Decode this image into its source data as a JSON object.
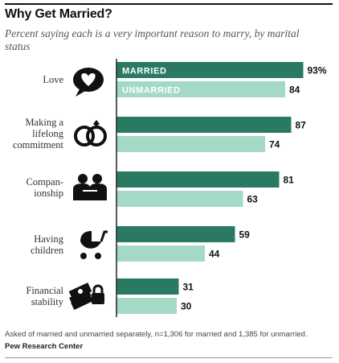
{
  "title": "Why Get Married?",
  "subtitle": "Percent saying each is a very important reason to marry, by marital status",
  "note": "Asked of married and unmarried separately, n=1,306 for married and 1,385 for unmarried.",
  "source": "Pew Research Center",
  "colors": {
    "married": "#2a7a63",
    "unmarried": "#a4d9c6",
    "axis": "#222222",
    "icon": "#111111"
  },
  "chart_data": {
    "type": "bar",
    "orientation": "horizontal",
    "categories": [
      {
        "lines": [
          "Love"
        ],
        "icon": "heart-speech-bubble-icon"
      },
      {
        "lines": [
          "Making a",
          "lifelong",
          "commitment"
        ],
        "icon": "wedding-rings-icon"
      },
      {
        "lines": [
          "Compan-",
          "ionship"
        ],
        "icon": "two-people-icon"
      },
      {
        "lines": [
          "Having",
          "children"
        ],
        "icon": "baby-stroller-icon"
      },
      {
        "lines": [
          "Financial",
          "stability"
        ],
        "icon": "money-lock-icon"
      }
    ],
    "series": [
      {
        "name": "MARRIED",
        "values": [
          93,
          87,
          81,
          59,
          31
        ],
        "labels": [
          "93%",
          "87",
          "81",
          "59",
          "31"
        ]
      },
      {
        "name": "UNMARRIED",
        "values": [
          84,
          74,
          63,
          44,
          30
        ],
        "labels": [
          "84",
          "74",
          "63",
          "44",
          "30"
        ]
      }
    ],
    "xlim": [
      0,
      100
    ],
    "legend": "inside-bars",
    "grid": false
  }
}
